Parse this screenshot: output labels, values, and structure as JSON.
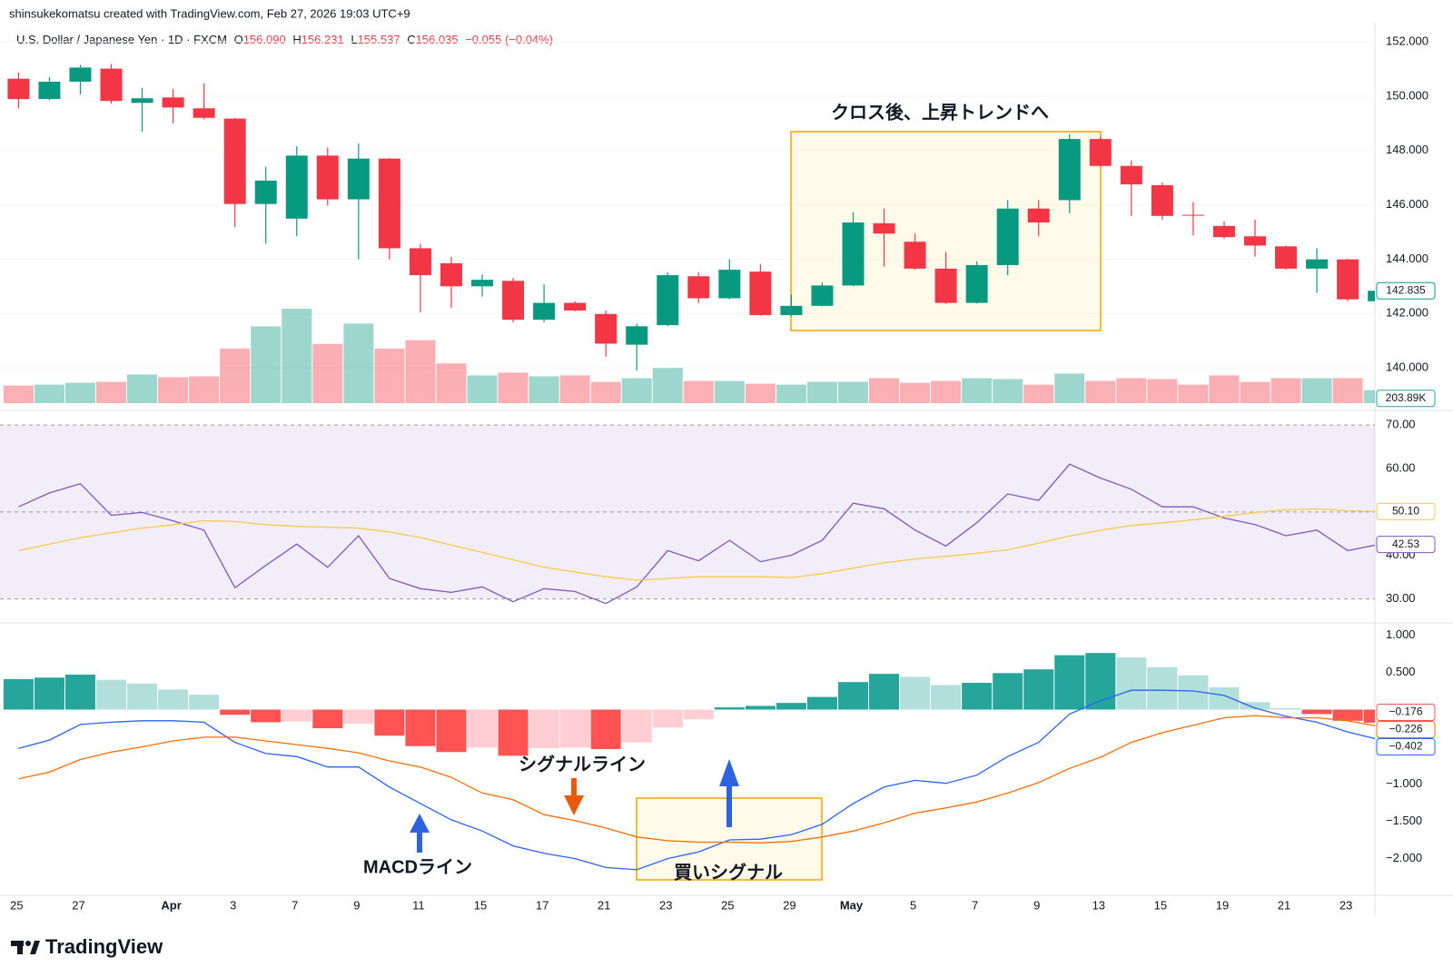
{
  "header": {
    "credit": "shinsukekomatsu created with TradingView.com, Feb 27, 2026 19:03 UTC+9"
  },
  "legend": {
    "symbol": "U.S. Dollar / Japanese Yen · 1D · FXCM",
    "ohlc": [
      {
        "key": "O",
        "value": "156.090"
      },
      {
        "key": "H",
        "value": "156.231"
      },
      {
        "key": "L",
        "value": "155.537"
      },
      {
        "key": "C",
        "value": "156.035"
      }
    ],
    "change": "−0.055 (−0.04%)"
  },
  "chart_data": [
    {
      "type": "candlestick",
      "open": [
        150.64,
        149.89,
        150.53,
        151.01,
        149.75,
        149.95,
        149.55,
        149.17,
        146.03,
        145.49,
        147.81,
        146.2,
        147.7,
        144.4,
        143.85,
        143.0,
        143.2,
        141.77,
        142.39,
        141.98,
        140.85,
        141.57,
        143.37,
        142.56,
        143.54,
        141.94,
        142.28,
        143.03,
        145.32,
        144.64,
        143.65,
        142.39,
        143.78,
        145.86,
        146.17,
        148.42,
        147.43,
        146.72,
        145.63,
        145.22,
        144.84,
        144.47,
        143.65,
        143.99,
        142.45
      ],
      "high": [
        150.87,
        150.7,
        151.15,
        151.18,
        150.3,
        150.26,
        150.47,
        149.2,
        147.4,
        148.15,
        148.11,
        148.25,
        147.72,
        144.57,
        144.09,
        143.44,
        143.31,
        143.07,
        142.45,
        142.11,
        141.63,
        143.51,
        143.51,
        143.99,
        143.82,
        142.69,
        143.14,
        145.73,
        145.86,
        144.94,
        144.26,
        143.92,
        146.17,
        146.17,
        148.59,
        148.49,
        147.64,
        146.82,
        146.1,
        145.39,
        145.45,
        144.5,
        144.4,
        144.02,
        142.9
      ],
      "low": [
        149.55,
        149.85,
        150.06,
        149.72,
        148.69,
        149.0,
        149.14,
        145.18,
        144.57,
        144.84,
        145.97,
        143.99,
        143.99,
        142.04,
        142.21,
        142.62,
        141.67,
        141.67,
        142.08,
        140.41,
        139.9,
        141.53,
        142.39,
        142.52,
        141.92,
        141.91,
        142.26,
        143.0,
        143.72,
        143.61,
        142.35,
        142.37,
        143.41,
        144.84,
        145.69,
        147.4,
        145.59,
        145.45,
        144.87,
        144.74,
        144.09,
        143.61,
        142.76,
        142.45,
        142.4
      ],
      "close": [
        149.89,
        150.53,
        151.05,
        149.82,
        149.92,
        149.58,
        149.2,
        146.03,
        146.89,
        147.81,
        146.2,
        147.7,
        144.4,
        143.41,
        143.0,
        143.24,
        141.77,
        142.39,
        142.11,
        140.89,
        141.53,
        143.41,
        142.56,
        143.61,
        141.94,
        142.28,
        143.03,
        145.35,
        144.94,
        143.65,
        142.39,
        143.78,
        145.86,
        145.35,
        148.42,
        147.43,
        146.75,
        145.59,
        145.62,
        144.81,
        144.5,
        143.65,
        143.99,
        142.52,
        142.835
      ],
      "up_color": "#089981",
      "down_color": "#f23645",
      "ylim": [
        138.7,
        152.5
      ],
      "yticks": [
        {
          "value": 140,
          "label": "140.000"
        },
        {
          "value": 142,
          "label": "142.000"
        },
        {
          "value": 144,
          "label": "144.000"
        },
        {
          "value": 146,
          "label": "146.000"
        },
        {
          "value": 148,
          "label": "148.000"
        },
        {
          "value": 150,
          "label": "150.000"
        },
        {
          "value": 152,
          "label": "152.000"
        }
      ],
      "grid": true,
      "volume": {
        "values": [
          277000,
          291000,
          320000,
          335000,
          451000,
          408000,
          422000,
          859000,
          1208000,
          1485000,
          932000,
          1252000,
          859000,
          990000,
          626000,
          437000,
          480000,
          422000,
          437000,
          335000,
          393000,
          553000,
          349000,
          349000,
          306000,
          291000,
          335000,
          335000,
          393000,
          320000,
          349000,
          393000,
          379000,
          291000,
          466000,
          349000,
          393000,
          379000,
          291000,
          437000,
          335000,
          393000,
          393000,
          393000,
          203890
        ],
        "value_labels": [
          null,
          null,
          null,
          null,
          null,
          null,
          null,
          null,
          null,
          null,
          null,
          null,
          null,
          null,
          null,
          null,
          null,
          null,
          null,
          null,
          null,
          null,
          null,
          null,
          null,
          null,
          null,
          null,
          null,
          null,
          null,
          null,
          null,
          null,
          null,
          null,
          null,
          null,
          null,
          null,
          null,
          null,
          null,
          null,
          "203.89K"
        ],
        "ylim": [
          0,
          5900000
        ],
        "up_color": "rgba(8,153,129,0.4)",
        "down_color": "rgba(242,54,69,0.4)",
        "tag_color": "#26a69a"
      },
      "annotation": "クロス後、上昇トレンドへ"
    },
    {
      "type": "line",
      "series": [
        {
          "color": "#7e57c2",
          "values": [
            51.18,
            54.38,
            56.52,
            49.25,
            49.89,
            47.97,
            45.83,
            32.57,
            37.7,
            42.62,
            37.27,
            44.55,
            34.71,
            32.35,
            31.5,
            32.78,
            29.36,
            32.35,
            31.71,
            28.93,
            32.78,
            41.12,
            38.77,
            43.48,
            38.56,
            40.05,
            43.48,
            52.03,
            50.75,
            45.83,
            42.19,
            47.54,
            54.17,
            52.67,
            61.02,
            57.81,
            55.24,
            51.18,
            51.18,
            48.61,
            47.11,
            44.55,
            45.83,
            41.12,
            42.53
          ]
        },
        {
          "color": "#f7c948",
          "values": [
            41.1,
            42.6,
            44.1,
            45.2,
            46.3,
            47.1,
            48.0,
            47.8,
            47.1,
            46.7,
            46.5,
            46.3,
            45.4,
            44.1,
            42.4,
            40.7,
            39.0,
            37.3,
            36.2,
            35.1,
            34.3,
            34.7,
            35.1,
            35.1,
            35.1,
            34.9,
            35.8,
            37.1,
            38.3,
            39.2,
            39.8,
            40.5,
            41.3,
            42.8,
            44.5,
            45.8,
            46.9,
            47.5,
            48.2,
            49.0,
            49.9,
            50.5,
            50.7,
            50.3,
            50.1
          ],
          "value_labels": [
            null,
            null,
            null,
            null,
            null,
            null,
            null,
            null,
            null,
            null,
            null,
            null,
            null,
            null,
            null,
            null,
            null,
            null,
            null,
            null,
            null,
            null,
            null,
            null,
            null,
            null,
            null,
            null,
            null,
            null,
            null,
            null,
            null,
            null,
            null,
            null,
            null,
            null,
            null,
            null,
            null,
            null,
            null,
            null,
            "50.10"
          ]
        }
      ],
      "ylim": [
        24.9,
        71.5
      ],
      "yticks": [
        {
          "value": 30,
          "label": "30.00"
        },
        {
          "value": 40,
          "label": "40.00"
        },
        {
          "value": 60,
          "label": "60.00"
        },
        {
          "value": 70,
          "label": "70.00"
        }
      ],
      "band": [
        30,
        70
      ],
      "band_color": "rgba(126,87,194,0.10)",
      "hlines": [
        70,
        50,
        30
      ]
    },
    {
      "type": "macd",
      "categories": [
        "25",
        null,
        "27",
        null,
        null,
        "Apr",
        null,
        "3",
        null,
        "7",
        null,
        "9",
        null,
        "11",
        null,
        "15",
        null,
        "17",
        null,
        "21",
        null,
        "23",
        null,
        "25",
        null,
        "29",
        null,
        "May",
        null,
        "5",
        null,
        "7",
        null,
        "9",
        null,
        "13",
        null,
        "15",
        null,
        "19",
        null,
        "21",
        null,
        "23",
        null
      ],
      "ylim": [
        -2.42,
        1.14
      ],
      "yticks": [
        {
          "value": 1,
          "label": "1.000"
        },
        {
          "value": 0.5,
          "label": "0.500"
        },
        {
          "value": -1,
          "label": "−1.000"
        },
        {
          "value": -1.5,
          "label": "−1.500"
        },
        {
          "value": -2,
          "label": "−2.000"
        }
      ],
      "histogram": {
        "values": [
          0.41,
          0.43,
          0.47,
          0.4,
          0.35,
          0.27,
          0.2,
          -0.07,
          -0.17,
          -0.16,
          -0.25,
          -0.19,
          -0.35,
          -0.49,
          -0.57,
          -0.51,
          -0.62,
          -0.52,
          -0.51,
          -0.53,
          -0.44,
          -0.24,
          -0.13,
          0.03,
          0.05,
          0.09,
          0.17,
          0.37,
          0.48,
          0.44,
          0.33,
          0.36,
          0.49,
          0.54,
          0.73,
          0.76,
          0.7,
          0.57,
          0.46,
          0.3,
          0.1,
          0.02,
          -0.06,
          -0.15,
          -0.176
        ],
        "value_labels": [
          null,
          null,
          null,
          null,
          null,
          null,
          null,
          null,
          null,
          null,
          null,
          null,
          null,
          null,
          null,
          null,
          null,
          null,
          null,
          null,
          null,
          null,
          null,
          null,
          null,
          null,
          null,
          null,
          null,
          null,
          null,
          null,
          null,
          null,
          null,
          null,
          null,
          null,
          null,
          null,
          null,
          null,
          null,
          null,
          "−0.176"
        ],
        "colors": {
          "up_strong": "#26a69a",
          "up_weak": "#b2dfdb",
          "down_strong": "#ff5252",
          "down_weak": "#ffcdd2"
        }
      },
      "macd": {
        "color": "#2962ff",
        "values": [
          -0.52,
          -0.41,
          -0.2,
          -0.17,
          -0.15,
          -0.15,
          -0.17,
          -0.44,
          -0.59,
          -0.63,
          -0.77,
          -0.77,
          -1.04,
          -1.26,
          -1.48,
          -1.63,
          -1.83,
          -1.93,
          -2.0,
          -2.12,
          -2.15,
          -2.0,
          -1.91,
          -1.75,
          -1.74,
          -1.68,
          -1.54,
          -1.26,
          -1.04,
          -0.95,
          -0.99,
          -0.88,
          -0.63,
          -0.44,
          -0.06,
          0.12,
          0.26,
          0.26,
          0.25,
          0.19,
          0.02,
          -0.09,
          -0.17,
          -0.3,
          -0.402
        ],
        "value_labels": [
          null,
          null,
          null,
          null,
          null,
          null,
          null,
          null,
          null,
          null,
          null,
          null,
          null,
          null,
          null,
          null,
          null,
          null,
          null,
          null,
          null,
          null,
          null,
          null,
          null,
          null,
          null,
          null,
          null,
          null,
          null,
          null,
          null,
          null,
          null,
          null,
          null,
          null,
          null,
          null,
          null,
          null,
          null,
          null,
          "−0.402"
        ]
      },
      "signal": {
        "color": "#ff6d00",
        "values": [
          -0.93,
          -0.84,
          -0.67,
          -0.57,
          -0.5,
          -0.42,
          -0.37,
          -0.37,
          -0.42,
          -0.47,
          -0.52,
          -0.58,
          -0.69,
          -0.77,
          -0.91,
          -1.12,
          -1.21,
          -1.41,
          -1.49,
          -1.59,
          -1.71,
          -1.76,
          -1.78,
          -1.78,
          -1.79,
          -1.77,
          -1.71,
          -1.63,
          -1.52,
          -1.39,
          -1.32,
          -1.24,
          -1.12,
          -0.98,
          -0.79,
          -0.64,
          -0.44,
          -0.31,
          -0.21,
          -0.11,
          -0.08,
          -0.11,
          -0.11,
          -0.15,
          -0.226
        ],
        "value_labels": [
          null,
          null,
          null,
          null,
          null,
          null,
          null,
          null,
          null,
          null,
          null,
          null,
          null,
          null,
          null,
          null,
          null,
          null,
          null,
          null,
          null,
          null,
          null,
          null,
          null,
          null,
          null,
          null,
          null,
          null,
          null,
          null,
          null,
          null,
          null,
          null,
          null,
          null,
          null,
          null,
          null,
          null,
          null,
          null,
          "−0.226"
        ]
      },
      "annotations": [
        "シグナルライン",
        "MACDライン",
        "買いシグナル"
      ]
    }
  ],
  "footer": {
    "logo": "TradingView"
  }
}
